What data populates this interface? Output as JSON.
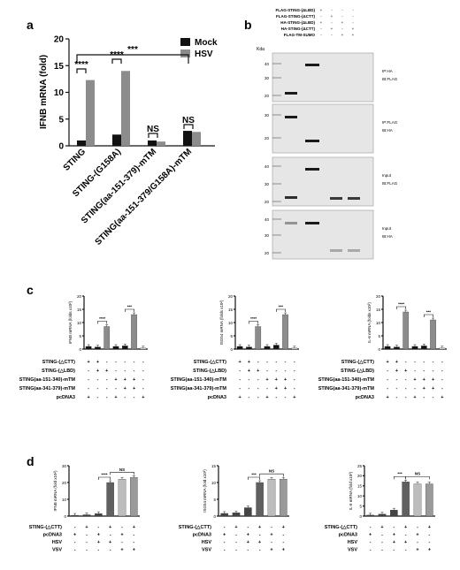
{
  "panels": {
    "a": "a",
    "b": "b",
    "c": "c",
    "d": "d"
  },
  "colors": {
    "mock": "#111111",
    "hsv": "#8c8c8c",
    "pcdna": "#dddddd",
    "blot_bg": "#e6e6e6",
    "blot_band": "#1a1a1a"
  },
  "chart_data": [
    {
      "id": "a",
      "type": "bar",
      "ylabel": "IFNB mRNA (fold)",
      "ylim": [
        0,
        20
      ],
      "yticks": [
        0,
        5,
        10,
        15,
        20
      ],
      "categories": [
        "STING",
        "STING-(G158A)",
        "STING(aa-151-379)-mTM",
        "STING(aa-151-379/G158A)-mTM"
      ],
      "series": [
        {
          "name": "Mock",
          "values": [
            1.0,
            2.1,
            1.0,
            2.8
          ]
        },
        {
          "name": "HSV",
          "values": [
            12.3,
            14.0,
            0.8,
            2.6
          ]
        }
      ],
      "legend": "top-right",
      "annotations": [
        "****",
        "****",
        "NS",
        "NS",
        "***"
      ]
    },
    {
      "id": "c1",
      "type": "bar",
      "ylabel": "IFNB mRNA (folds x10²)",
      "ylim": [
        0,
        20
      ],
      "yticks": [
        0,
        5,
        10,
        15,
        20
      ],
      "values": [
        1.0,
        0.8,
        8.5,
        1.0,
        1.2,
        13.0,
        0.4
      ],
      "annotations": [
        "****",
        "***"
      ]
    },
    {
      "id": "c2",
      "type": "bar",
      "ylabel": "ISG54 mRNA (folds x10²)",
      "ylim": [
        0,
        20
      ],
      "yticks": [
        0,
        5,
        10,
        15,
        20
      ],
      "values": [
        1.0,
        0.8,
        8.5,
        1.0,
        1.5,
        13.0,
        0.4
      ],
      "annotations": [
        "****",
        "***"
      ]
    },
    {
      "id": "c3",
      "type": "bar",
      "ylabel": "IL-6 mRNA (folds x10²)",
      "ylim": [
        0,
        20
      ],
      "yticks": [
        0,
        5,
        10,
        15,
        20
      ],
      "values": [
        1.0,
        0.8,
        14.0,
        1.0,
        1.2,
        11.0,
        0.4
      ],
      "annotations": [
        "****",
        "***"
      ]
    },
    {
      "id": "d1",
      "type": "bar",
      "ylabel": "IFNB mRNA (fold x10²)",
      "ylim": [
        0,
        30
      ],
      "yticks": [
        0,
        10,
        20,
        30
      ],
      "values": [
        0.5,
        0.8,
        1.5,
        20.0,
        22.0,
        23.0
      ],
      "annotations": [
        "****",
        "NS"
      ]
    },
    {
      "id": "d2",
      "type": "bar",
      "ylabel": "ISG54 mRNA (fold x10²)",
      "ylim": [
        0,
        15
      ],
      "yticks": [
        0,
        5,
        10,
        15
      ],
      "values": [
        0.8,
        1.0,
        2.5,
        10.0,
        11.0,
        11.0
      ],
      "annotations": [
        "***",
        "NS"
      ]
    },
    {
      "id": "d3",
      "type": "bar",
      "ylabel": "IL-6 mRNA (fold x10²)",
      "ylim": [
        0,
        25
      ],
      "yticks": [
        0,
        5,
        10,
        15,
        20,
        25
      ],
      "values": [
        0.5,
        1.0,
        3.0,
        17.0,
        16.0,
        16.0
      ],
      "annotations": [
        "***",
        "NS"
      ]
    }
  ],
  "blot": {
    "header_rows": [
      {
        "label": "FLAG-STING-(ΔLBD)",
        "signs": [
          "+",
          "-",
          "-",
          "-"
        ]
      },
      {
        "label": "FLAG-STING-(ΔCTT)",
        "signs": [
          "-",
          "+",
          "-",
          "-"
        ]
      },
      {
        "label": "HA-STING-(ΔLBD)",
        "signs": [
          "+",
          "-",
          "+",
          "-"
        ]
      },
      {
        "label": "HA-STING-(ΔCTT)",
        "signs": [
          "-",
          "+",
          "-",
          "+"
        ]
      },
      {
        "label": "FLAG-TM-SUMO",
        "signs": [
          "-",
          "-",
          "+",
          "+"
        ]
      }
    ],
    "kda": "Kda",
    "panels": [
      {
        "ip": "IP:HA",
        "ib": "IB:FLAG",
        "markers": [
          "40",
          "30",
          "20"
        ]
      },
      {
        "ip": "IP:FLAG",
        "ib": "IB:HA",
        "markers": [
          "30",
          "20"
        ]
      },
      {
        "ip": "Input",
        "ib": "IB:FLAG",
        "markers": [
          "40",
          "30",
          "20"
        ]
      },
      {
        "ip": "Input",
        "ib": "IB:HA",
        "markers": [
          "40",
          "30",
          "20"
        ]
      }
    ]
  },
  "panel_c_rows": [
    {
      "label": "STING-(△CTT)",
      "signs": [
        "+",
        "+",
        "-",
        "-",
        "-",
        "-",
        "-"
      ]
    },
    {
      "label": "STING-(△LBD)",
      "signs": [
        "-",
        "+",
        "+",
        "-",
        "-",
        "-",
        "-"
      ]
    },
    {
      "label": "STING(aa-151-340)-mTM",
      "signs": [
        "-",
        "-",
        "-",
        "+",
        "+",
        "+",
        "-"
      ]
    },
    {
      "label": "STING(aa-341-379)-mTM",
      "signs": [
        "-",
        "-",
        "-",
        "-",
        "+",
        "+",
        "-"
      ]
    },
    {
      "label": "pcDNA3",
      "signs": [
        "+",
        "-",
        "-",
        "+",
        "-",
        "-",
        "+"
      ]
    }
  ],
  "panel_d_rows": [
    {
      "label": "STING-(△CTT)",
      "signs": [
        "-",
        "+",
        "-",
        "+",
        "-",
        "+"
      ]
    },
    {
      "label": "pcDNA3",
      "signs": [
        "+",
        "-",
        "+",
        "-",
        "+",
        "-"
      ]
    },
    {
      "label": "HSV",
      "signs": [
        "-",
        "-",
        "+",
        "+",
        "-",
        "-"
      ]
    },
    {
      "label": "VSV",
      "signs": [
        "-",
        "-",
        "-",
        "-",
        "+",
        "+"
      ]
    }
  ]
}
